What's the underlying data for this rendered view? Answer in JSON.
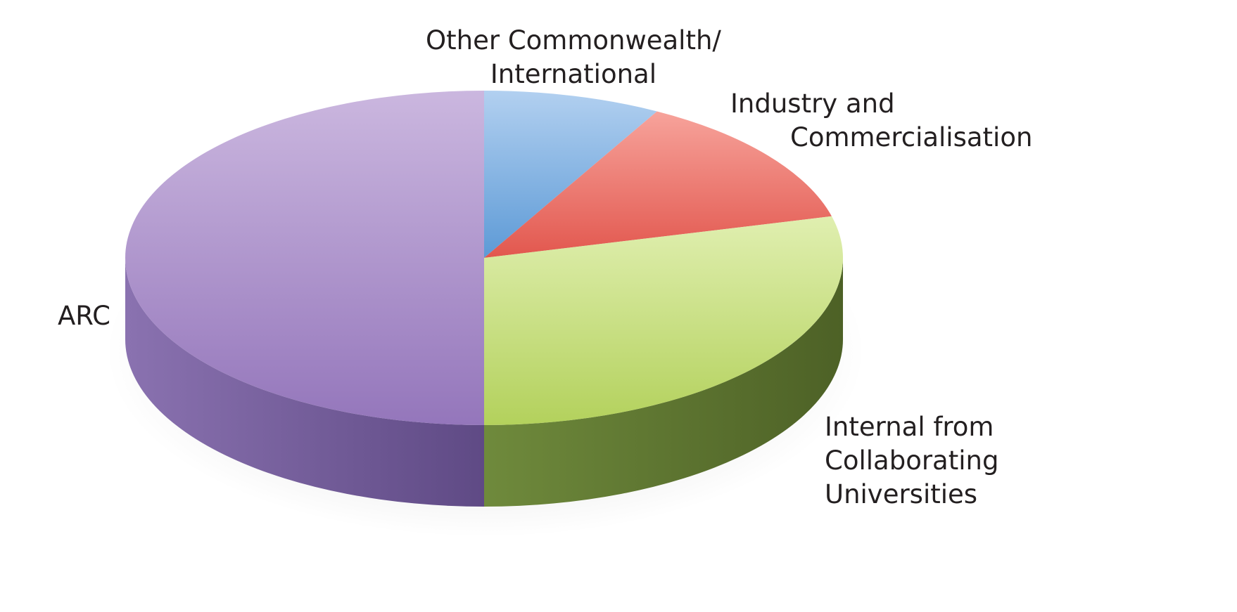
{
  "chart_data": {
    "type": "pie",
    "style": "3d",
    "title": "",
    "slices": [
      {
        "label": "Other Commonwealth/ International",
        "label_lines": [
          "Other Commonwealth/",
          "International"
        ],
        "value": 8,
        "color": "#8bb8e4"
      },
      {
        "label": "Industry and Commercialisation",
        "label_lines": [
          "Industry and",
          "Commercialisation"
        ],
        "value": 13,
        "color": "#ea7670"
      },
      {
        "label": "Internal from Collaborating Universities",
        "label_lines": [
          "Internal from",
          "Collaborating",
          "Universities"
        ],
        "value": 29,
        "color": "#c8e07d"
      },
      {
        "label": "ARC",
        "label_lines": [
          "ARC"
        ],
        "value": 50,
        "color": "#a88fc7"
      }
    ],
    "legend": "none",
    "labels": "outside"
  }
}
